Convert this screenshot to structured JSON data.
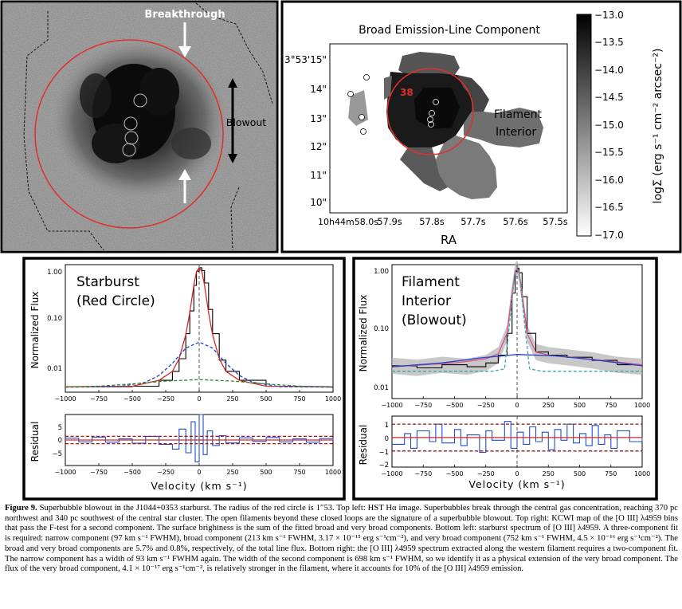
{
  "panel_tl": {
    "label_breakthrough": "Breakthrough",
    "label_blowout": "Blowout"
  },
  "panel_tr": {
    "title": "Broad Emission-Line Component",
    "dec_ticks": [
      "3°53'15\"",
      "14\"",
      "13\"",
      "12\"",
      "11\"",
      "10\""
    ],
    "ra_ticks": [
      "10h44m58.0s",
      "57.9s",
      "57.8s",
      "57.7s",
      "57.6s",
      "57.5s"
    ],
    "xlabel": "RA",
    "label_filament": "Filament",
    "label_interior": "Interior",
    "colorbar_label": "logΣ (erg s⁻¹ cm⁻² arcsec⁻²)",
    "colorbar_ticks": [
      "−13.0",
      "−13.5",
      "−14.0",
      "−14.5",
      "−15.0",
      "−15.5",
      "−16.0",
      "−16.5",
      "−17.0"
    ]
  },
  "panel_bl": {
    "label_line1": "Starburst",
    "label_line2": "(Red Circle)"
  },
  "panel_br": {
    "label_line1": "Filament",
    "label_line2": "Interior",
    "label_line3": "(Blowout)"
  },
  "axes": {
    "ylabel_flux": "Normalized Flux",
    "ylabel_residual": "Residual",
    "xlabel_velocity": "Velocity (km s⁻¹)",
    "x_ticks": [
      "−1000",
      "−750",
      "−500",
      "−250",
      "0",
      "250",
      "500",
      "750",
      "1000"
    ]
  },
  "chart_data": [
    {
      "type": "line",
      "panel": "bottom-left flux",
      "ylabel": "Normalized Flux",
      "xlim": [
        -1000,
        1000
      ],
      "ylim": [
        0.0035,
        1.15
      ],
      "yscale": "log",
      "y_tick_labels": [
        "1.00",
        "0.10",
        "0.01"
      ],
      "series": [
        {
          "color": "#000000",
          "style": "steps",
          "x": [
            -1000,
            -750,
            -500,
            -300,
            -200,
            -150,
            -100,
            -70,
            -40,
            -20,
            0,
            20,
            40,
            70,
            100,
            150,
            200,
            300,
            500,
            750,
            1000
          ],
          "values": [
            0.0045,
            0.0045,
            0.0046,
            0.006,
            0.009,
            0.016,
            0.05,
            0.14,
            0.45,
            0.85,
            1.0,
            0.88,
            0.5,
            0.15,
            0.05,
            0.015,
            0.009,
            0.006,
            0.0046,
            0.0045,
            0.0044
          ]
        },
        {
          "color": "#d62728",
          "style": "solid",
          "x": [
            -1000,
            -500,
            -300,
            -200,
            -150,
            -100,
            -70,
            -40,
            -20,
            0,
            20,
            40,
            70,
            100,
            150,
            200,
            300,
            500,
            1000
          ],
          "values": [
            0.0045,
            0.0046,
            0.006,
            0.009,
            0.016,
            0.048,
            0.13,
            0.45,
            0.84,
            1.0,
            0.84,
            0.45,
            0.13,
            0.048,
            0.016,
            0.009,
            0.006,
            0.0046,
            0.0045
          ]
        },
        {
          "color": "#1f3fcf",
          "style": "dashed",
          "x": [
            -1000,
            -600,
            -400,
            -300,
            -200,
            -100,
            0,
            100,
            200,
            300,
            400,
            600,
            1000
          ],
          "values": [
            0.0044,
            0.0045,
            0.0055,
            0.0075,
            0.013,
            0.026,
            0.034,
            0.026,
            0.013,
            0.0075,
            0.0055,
            0.0045,
            0.0044
          ]
        },
        {
          "color": "#2a8a2a",
          "style": "dashed",
          "x": [
            -1000,
            -750,
            -500,
            -250,
            0,
            250,
            500,
            750,
            1000
          ],
          "values": [
            0.0044,
            0.0046,
            0.0051,
            0.0058,
            0.0062,
            0.0058,
            0.0051,
            0.0046,
            0.0044
          ]
        }
      ]
    },
    {
      "type": "line",
      "panel": "bottom-left residual",
      "ylabel": "Residual",
      "xlabel": "Velocity (km s⁻¹)",
      "xlim": [
        -1000,
        1000
      ],
      "ylim": [
        -7,
        7
      ],
      "y_tick_labels": [
        "5",
        "0",
        "−5"
      ],
      "series": [
        {
          "color": "#1f4fcf",
          "style": "steps",
          "x": [
            -1000,
            -900,
            -800,
            -700,
            -600,
            -500,
            -400,
            -300,
            -200,
            -150,
            -100,
            -60,
            -30,
            0,
            30,
            60,
            100,
            150,
            200,
            300,
            400,
            500,
            600,
            700,
            800,
            900,
            1000
          ],
          "values": [
            0.5,
            -0.5,
            0.8,
            -0.6,
            0.3,
            -0.9,
            1.0,
            -1.2,
            -2.5,
            3.0,
            -3.5,
            5.0,
            -6.0,
            7.0,
            -4.0,
            2.5,
            -1.5,
            1.2,
            -0.8,
            0.6,
            -0.4,
            0.7,
            -0.5,
            0.3,
            -0.6,
            0.4,
            0.0
          ]
        },
        {
          "color": "#d62728",
          "style": "solid",
          "x": [
            -1000,
            1000
          ],
          "values": [
            0,
            0
          ]
        },
        {
          "color": "#8b1a1a",
          "style": "dashed",
          "x": [
            -1000,
            1000
          ],
          "values": [
            1,
            1
          ]
        },
        {
          "color": "#8b1a1a",
          "style": "dashed",
          "x": [
            -1000,
            1000
          ],
          "values": [
            -1,
            -1
          ]
        }
      ]
    },
    {
      "type": "line",
      "panel": "bottom-right flux",
      "ylabel": "Normalized Flux",
      "xlim": [
        -1000,
        1000
      ],
      "ylim": [
        0.008,
        1.15
      ],
      "yscale": "log",
      "y_tick_labels": [
        "1.00",
        "0.10",
        "0.01"
      ],
      "series": [
        {
          "color": "#000000",
          "style": "steps",
          "x": [
            -1000,
            -800,
            -600,
            -400,
            -250,
            -150,
            -80,
            -40,
            -15,
            0,
            15,
            40,
            80,
            150,
            250,
            400,
            600,
            800,
            1000
          ],
          "values": [
            0.027,
            0.025,
            0.028,
            0.026,
            0.03,
            0.04,
            0.09,
            0.4,
            0.9,
            1.0,
            0.85,
            0.35,
            0.09,
            0.045,
            0.04,
            0.037,
            0.033,
            0.028,
            0.026
          ]
        },
        {
          "color": "#e0507f",
          "style": "solid",
          "x": [
            -1000,
            -500,
            -250,
            -150,
            -80,
            -40,
            -15,
            0,
            15,
            40,
            80,
            150,
            250,
            500,
            1000
          ],
          "values": [
            0.026,
            0.03,
            0.035,
            0.042,
            0.09,
            0.4,
            0.88,
            1.0,
            0.88,
            0.4,
            0.09,
            0.045,
            0.04,
            0.036,
            0.028
          ]
        },
        {
          "color": "#1f3fcf",
          "style": "solid",
          "x": [
            -1000,
            -600,
            -300,
            0,
            300,
            600,
            1000
          ],
          "values": [
            0.026,
            0.03,
            0.036,
            0.041,
            0.039,
            0.034,
            0.027
          ]
        },
        {
          "color": "#3aa8a8",
          "style": "dashed",
          "x": [
            -1000,
            -200,
            -100,
            -50,
            -20,
            0,
            20,
            50,
            100,
            200,
            1000
          ],
          "values": [
            0.022,
            0.022,
            0.024,
            0.2,
            0.8,
            0.95,
            0.8,
            0.2,
            0.024,
            0.022,
            0.022
          ]
        }
      ]
    },
    {
      "type": "line",
      "panel": "bottom-right residual",
      "ylabel": "Residual",
      "xlabel": "Velocity (km s⁻¹)",
      "xlim": [
        -1000,
        1000
      ],
      "ylim": [
        -2.2,
        1.6
      ],
      "y_tick_labels": [
        "1",
        "0",
        "−1",
        "−2"
      ],
      "series": [
        {
          "color": "#1f4fcf",
          "style": "steps",
          "x": [
            -1000,
            -900,
            -850,
            -800,
            -700,
            -650,
            -600,
            -500,
            -450,
            -400,
            -300,
            -250,
            -200,
            -100,
            -50,
            0,
            50,
            100,
            150,
            200,
            250,
            300,
            350,
            400,
            450,
            500,
            550,
            600,
            650,
            700,
            750,
            800,
            900,
            1000
          ],
          "values": [
            -0.5,
            0.3,
            -0.8,
            0.5,
            -0.3,
            1.0,
            -0.4,
            0.6,
            -0.6,
            0.2,
            -1.1,
            0.5,
            -0.2,
            1.2,
            -0.8,
            0.4,
            -0.5,
            0.8,
            -0.3,
            0.4,
            -0.9,
            0.6,
            -0.2,
            1.0,
            -0.4,
            0.3,
            -0.6,
            0.9,
            -0.5,
            0.2,
            -0.8,
            0.5,
            -0.3,
            0.0
          ]
        },
        {
          "color": "#d62728",
          "style": "solid",
          "x": [
            -1000,
            1000
          ],
          "values": [
            0,
            0
          ]
        },
        {
          "color": "#8b1a1a",
          "style": "dashed",
          "x": [
            -1000,
            1000
          ],
          "values": [
            1,
            1
          ]
        },
        {
          "color": "#8b1a1a",
          "style": "dashed",
          "x": [
            -1000,
            1000
          ],
          "values": [
            -1,
            -1
          ]
        }
      ]
    }
  ],
  "caption": {
    "fig_label": "Figure 9.",
    "text": " Superbubble blowout in the J1044+0353 starburst. The radius of the red circle is 1″53. Top left: HST Hα image. Superbubbles break through the central gas concentration, reaching 370 pc northwest and 340 pc southwest of the central star cluster. The open filaments beyond these closed loops are the signature of a superbubble blowout. Top right: KCWI map of the [O III] λ4959 bins that pass the F-test for a second component. The surface brightness is the sum of the fitted broad and very broad components. Bottom left: starburst spectrum of [O III] λ4959. A three-component fit is required: narrow component (97 km s⁻¹ FWHM), broad component (213 km s⁻¹ FWHM, 3.17 × 10⁻¹⁵ erg s⁻¹cm⁻²), and very broad component (752 km s⁻¹ FWHM, 4.5 × 10⁻¹⁶ erg s⁻¹cm⁻²). The broad and very broad components are 5.7% and 0.8%, respectively, of the total line flux. Bottom right: the [O III] λ4959 spectrum extracted along the western filament requires a two-component fit. The narrow component has a width of 93 km s⁻¹ FWHM again. The width of the second component is 698 km s⁻¹ FWHM, so we identify it as a physical extension of the very broad component. The flux of the very broad component, 4.1 × 10⁻¹⁷ erg s⁻¹cm⁻², is relatively stronger in the filament, where it accounts for 10% of the [O III] λ4959 emission."
  }
}
